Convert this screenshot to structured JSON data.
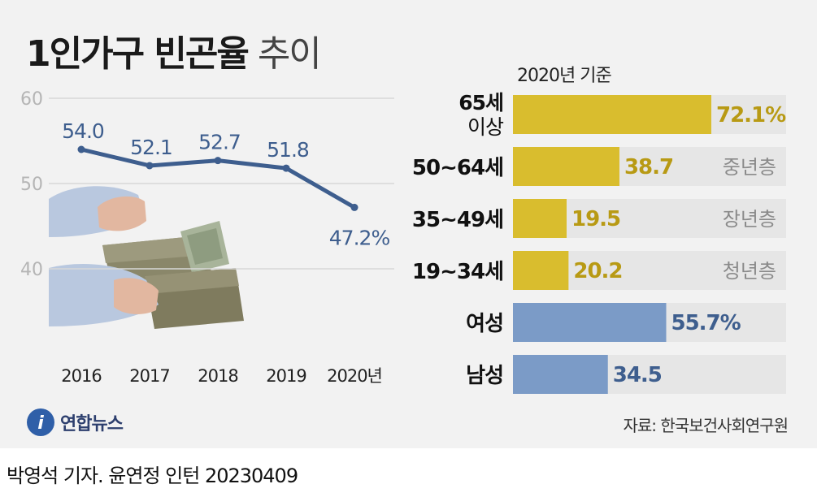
{
  "header": {
    "title_bold": "1인가구 빈곤율",
    "title_light": "추이",
    "basis_label": "2020년 기준"
  },
  "footer": {
    "source": "자료: 한국보건사회연구원",
    "logo_text": "연합뉴스",
    "credit": "박영석 기자. 윤연정 인턴  20230409"
  },
  "chart_data": [
    {
      "type": "line",
      "x": [
        "2016",
        "2017",
        "2018",
        "2019",
        "2020년"
      ],
      "series": [
        {
          "values": [
            54.0,
            52.1,
            52.7,
            51.8,
            47.2
          ],
          "labels": [
            "54.0",
            "52.1",
            "52.7",
            "51.8",
            "47.2%"
          ]
        }
      ],
      "yticks": [
        40,
        50,
        60
      ],
      "ylim": [
        40,
        60
      ],
      "grid": true,
      "colors": {
        "line": "#3e5e8e",
        "label": "#3e5e8e",
        "grid": "#d8d8d8",
        "tick": "#b5b5b5"
      }
    },
    {
      "type": "bar",
      "orientation": "horizontal",
      "categories": [
        {
          "lines": [
            "65세",
            "이상"
          ],
          "value": 72.1,
          "label": "72.1%",
          "tag": "",
          "group": "age"
        },
        {
          "lines": [
            "50~64세"
          ],
          "value": 38.7,
          "label": "38.7",
          "tag": "중년층",
          "group": "age"
        },
        {
          "lines": [
            "35~49세"
          ],
          "value": 19.5,
          "label": "19.5",
          "tag": "장년층",
          "group": "age"
        },
        {
          "lines": [
            "19~34세"
          ],
          "value": 20.2,
          "label": "20.2",
          "tag": "청년층",
          "group": "age"
        },
        {
          "lines": [
            "여성"
          ],
          "value": 55.7,
          "label": "55.7%",
          "tag": "",
          "group": "gender"
        },
        {
          "lines": [
            "남성"
          ],
          "value": 34.5,
          "label": "34.5",
          "tag": "",
          "group": "gender"
        }
      ],
      "xlim": [
        0,
        72.1
      ],
      "colors": {
        "age": "#d9bd2e",
        "age_label": "#b89a14",
        "gender": "#7b9bc7",
        "gender_label": "#3e5e8e",
        "track": "#e6e6e6",
        "tag": "#8a8a8a"
      }
    }
  ]
}
